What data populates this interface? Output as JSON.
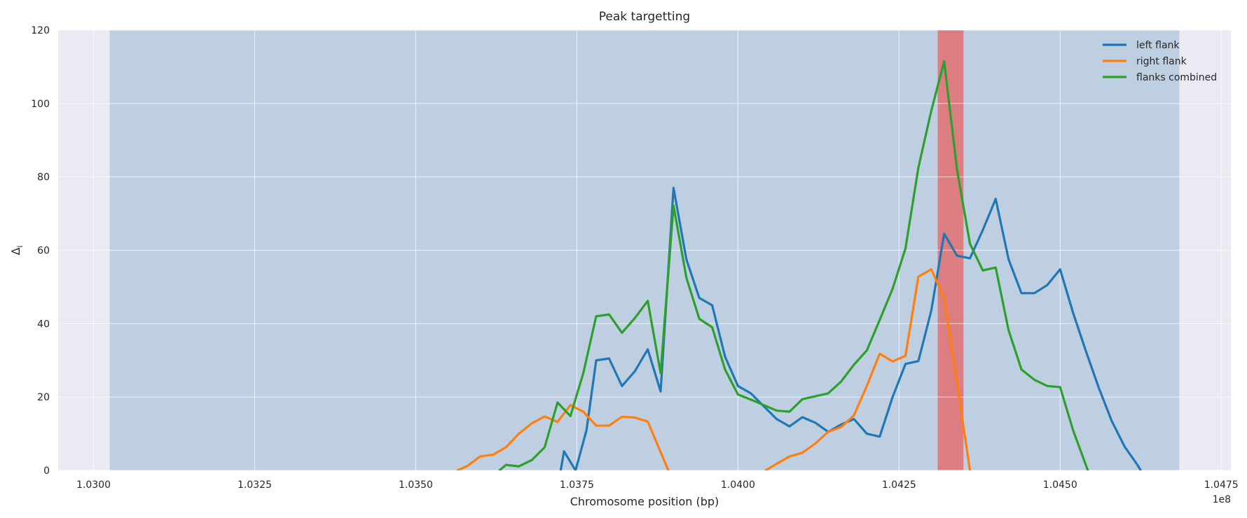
{
  "chart_data": {
    "type": "line",
    "title": "Peak targetting",
    "xlabel": "Chromosome position (bp)",
    "ylabel": "Δ",
    "ylabel_subscript": "i",
    "x_offset_label": "1e8",
    "xlim": [
      1.02945,
      1.04765
    ],
    "ylim": [
      0,
      120
    ],
    "x_ticks": [
      1.03,
      1.0325,
      1.035,
      1.0375,
      1.04,
      1.0425,
      1.045,
      1.0475
    ],
    "x_tick_labels": [
      "1.0300",
      "1.0325",
      "1.0350",
      "1.0375",
      "1.0400",
      "1.0425",
      "1.0450",
      "1.0475"
    ],
    "y_ticks": [
      0,
      20,
      40,
      60,
      80,
      100,
      120
    ],
    "y_tick_labels": [
      "0",
      "20",
      "40",
      "60",
      "80",
      "100",
      "120"
    ],
    "grid": true,
    "legend_position": "top-right",
    "background_color": "#eaeaf2",
    "shaded_regions": [
      {
        "x0": 1.03025,
        "x1": 1.04685,
        "color": "#9ab8d6",
        "opacity": 0.55
      },
      {
        "x0": 1.0431,
        "x1": 1.0435,
        "color": "#e07070",
        "opacity": 0.85
      }
    ],
    "series": [
      {
        "name": "left flank",
        "color": "#1f77b4",
        "points": [
          [
            1.03725,
            0
          ],
          [
            1.0373,
            5.2
          ],
          [
            1.03748,
            0
          ],
          [
            1.03765,
            11
          ],
          [
            1.0378,
            30
          ],
          [
            1.038,
            30.5
          ],
          [
            1.0382,
            23
          ],
          [
            1.0384,
            27
          ],
          [
            1.0386,
            33
          ],
          [
            1.0388,
            21.5
          ],
          [
            1.039,
            77
          ],
          [
            1.0392,
            57.5
          ],
          [
            1.0394,
            47
          ],
          [
            1.0396,
            45
          ],
          [
            1.0398,
            31
          ],
          [
            1.04,
            23
          ],
          [
            1.0402,
            21
          ],
          [
            1.0404,
            17.5
          ],
          [
            1.0406,
            14
          ],
          [
            1.0408,
            12
          ],
          [
            1.041,
            14.5
          ],
          [
            1.0412,
            13
          ],
          [
            1.0414,
            10.5
          ],
          [
            1.0416,
            12.5
          ],
          [
            1.0418,
            14
          ],
          [
            1.042,
            10
          ],
          [
            1.0422,
            9.2
          ],
          [
            1.0424,
            20
          ],
          [
            1.0426,
            29
          ],
          [
            1.0428,
            29.8
          ],
          [
            1.043,
            43.5
          ],
          [
            1.0432,
            64.5
          ],
          [
            1.0434,
            58.5
          ],
          [
            1.0436,
            57.8
          ],
          [
            1.0438,
            65.5
          ],
          [
            1.044,
            74
          ],
          [
            1.0442,
            57.5
          ],
          [
            1.0444,
            48.3
          ],
          [
            1.0446,
            48.3
          ],
          [
            1.0448,
            50.5
          ],
          [
            1.045,
            54.8
          ],
          [
            1.0452,
            43
          ],
          [
            1.0454,
            32.5
          ],
          [
            1.0456,
            22.5
          ],
          [
            1.0458,
            13.5
          ],
          [
            1.046,
            6.5
          ],
          [
            1.0462,
            1.5
          ],
          [
            1.04625,
            0
          ]
        ]
      },
      {
        "name": "right flank",
        "color": "#ff7f0e",
        "points": [
          [
            1.03565,
            0
          ],
          [
            1.0358,
            1.2
          ],
          [
            1.036,
            3.8
          ],
          [
            1.0362,
            4.3
          ],
          [
            1.0364,
            6.3
          ],
          [
            1.0366,
            10
          ],
          [
            1.0368,
            12.8
          ],
          [
            1.037,
            14.7
          ],
          [
            1.0372,
            13.2
          ],
          [
            1.0374,
            17.8
          ],
          [
            1.0376,
            16
          ],
          [
            1.0378,
            12.2
          ],
          [
            1.038,
            12.2
          ],
          [
            1.0382,
            14.6
          ],
          [
            1.0384,
            14.4
          ],
          [
            1.0386,
            13.3
          ],
          [
            1.0388,
            5
          ],
          [
            1.03892,
            0
          ]
        ]
      },
      {
        "name": "right flank (cont.)",
        "color": "#ff7f0e",
        "points": [
          [
            1.04043,
            0
          ],
          [
            1.0406,
            1.8
          ],
          [
            1.0408,
            3.8
          ],
          [
            1.041,
            4.8
          ],
          [
            1.0412,
            7.3
          ],
          [
            1.0414,
            10.5
          ],
          [
            1.0416,
            11.8
          ],
          [
            1.0418,
            15
          ],
          [
            1.042,
            23
          ],
          [
            1.0422,
            31.8
          ],
          [
            1.0424,
            29.7
          ],
          [
            1.0426,
            31.2
          ],
          [
            1.0428,
            52.8
          ],
          [
            1.043,
            54.8
          ],
          [
            1.0432,
            47
          ],
          [
            1.0434,
            24
          ],
          [
            1.0436,
            0
          ]
        ]
      },
      {
        "name": "flanks combined",
        "color": "#2ca02c",
        "points": [
          [
            1.0363,
            0
          ],
          [
            1.0364,
            1.5
          ],
          [
            1.0366,
            1.1
          ],
          [
            1.0368,
            2.8
          ],
          [
            1.037,
            6.3
          ],
          [
            1.0372,
            18.5
          ],
          [
            1.0374,
            14.8
          ],
          [
            1.0376,
            26.5
          ],
          [
            1.0378,
            42
          ],
          [
            1.038,
            42.5
          ],
          [
            1.0382,
            37.5
          ],
          [
            1.0384,
            41.5
          ],
          [
            1.0386,
            46.2
          ],
          [
            1.0388,
            26.5
          ],
          [
            1.039,
            72.2
          ],
          [
            1.0392,
            52.5
          ],
          [
            1.0394,
            41.3
          ],
          [
            1.0396,
            39
          ],
          [
            1.0398,
            27.5
          ],
          [
            1.04,
            20.7
          ],
          [
            1.0402,
            19.3
          ],
          [
            1.0404,
            17.8
          ],
          [
            1.0406,
            16.3
          ],
          [
            1.0408,
            16
          ],
          [
            1.041,
            19.4
          ],
          [
            1.0412,
            20.2
          ],
          [
            1.0414,
            21
          ],
          [
            1.0416,
            24.2
          ],
          [
            1.0418,
            28.8
          ],
          [
            1.042,
            32.7
          ],
          [
            1.0422,
            41
          ],
          [
            1.0424,
            49.5
          ],
          [
            1.0426,
            60.5
          ],
          [
            1.0428,
            82.5
          ],
          [
            1.043,
            98
          ],
          [
            1.0432,
            111.5
          ],
          [
            1.0434,
            82
          ],
          [
            1.0436,
            61.8
          ],
          [
            1.0438,
            54.5
          ],
          [
            1.044,
            55.3
          ],
          [
            1.0442,
            38.2
          ],
          [
            1.0444,
            27.5
          ],
          [
            1.0446,
            24.7
          ],
          [
            1.0448,
            23
          ],
          [
            1.045,
            22.7
          ],
          [
            1.0452,
            11
          ],
          [
            1.04543,
            0
          ]
        ]
      }
    ],
    "legend": [
      {
        "label": "left flank",
        "color": "#1f77b4"
      },
      {
        "label": "right flank",
        "color": "#ff7f0e"
      },
      {
        "label": "flanks combined",
        "color": "#2ca02c"
      }
    ]
  }
}
